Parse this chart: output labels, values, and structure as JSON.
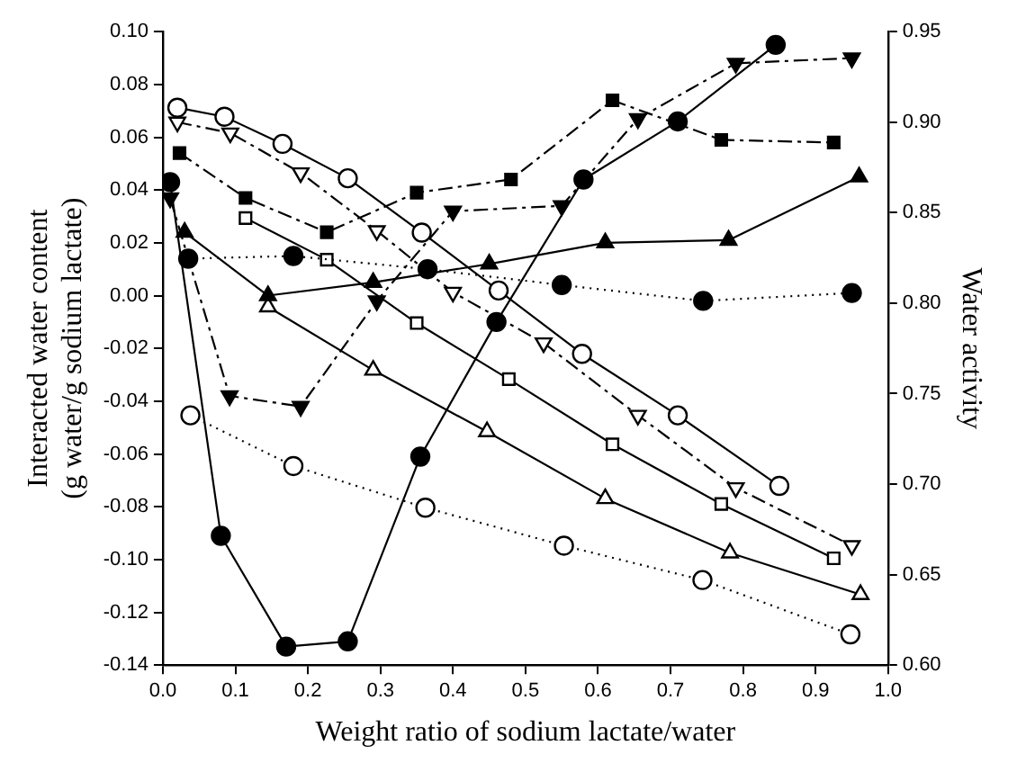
{
  "chart_data": {
    "type": "line",
    "xlabel": "Weight ratio of sodium lactate/water",
    "ylabel": "Interacted water content\n(g water/g sodium lactate)",
    "y2label": "Water activity",
    "xlim": [
      0,
      1.0
    ],
    "xticks": [
      {
        "value": 0,
        "label": "0.0"
      },
      0.1,
      0.2,
      0.3,
      0.4,
      0.5,
      0.6,
      0.7,
      0.8,
      0.9,
      {
        "value": 1.0,
        "label": "1.0"
      }
    ],
    "ylim": [
      -0.14,
      0.1
    ],
    "yticks": [
      {
        "value": -0.14,
        "label": "-0.14"
      },
      {
        "value": -0.12,
        "label": "-0.12"
      },
      {
        "value": -0.1,
        "label": "-0.10"
      },
      {
        "value": -0.08,
        "label": "-0.08"
      },
      {
        "value": -0.06,
        "label": "-0.06"
      },
      {
        "value": -0.04,
        "label": "-0.04"
      },
      {
        "value": -0.02,
        "label": "-0.02"
      },
      {
        "value": 0,
        "label": "0.00"
      },
      {
        "value": 0.02,
        "label": "0.02"
      },
      {
        "value": 0.04,
        "label": "0.04"
      },
      {
        "value": 0.06,
        "label": "0.06"
      },
      {
        "value": 0.08,
        "label": "0.08"
      },
      {
        "value": 0.1,
        "label": "0.10"
      }
    ],
    "y2lim": [
      0.6,
      0.95
    ],
    "y2ticks": [
      {
        "value": 0.6,
        "label": "0.60"
      },
      0.65,
      {
        "value": 0.7,
        "label": "0.70"
      },
      0.75,
      {
        "value": 0.8,
        "label": "0.80"
      },
      0.85,
      {
        "value": 0.9,
        "label": "0.90"
      },
      0.95
    ],
    "grid": false,
    "legend": false,
    "series": [
      {
        "color": "#000000",
        "marker": "circle",
        "line_style": "solid",
        "x": [
          0.01,
          0.08,
          0.17,
          0.255,
          0.355,
          0.46,
          0.58,
          0.71,
          0.845
        ],
        "values": [
          0.043,
          -0.091,
          -0.133,
          -0.131,
          -0.061,
          -0.01,
          0.044,
          0.066,
          0.095
        ]
      },
      {
        "color": "#000000",
        "marker": "circle",
        "line_style": "dotted",
        "x": [
          0.035,
          0.18,
          0.365,
          0.55,
          0.745,
          0.95
        ],
        "values": [
          0.014,
          0.015,
          0.01,
          0.004,
          -0.002,
          0.001
        ]
      },
      {
        "color": "#000000",
        "marker": "triangle_down",
        "line_style": "dashed",
        "x": [
          0.01,
          0.092,
          0.19,
          0.295,
          0.4,
          0.55,
          0.655,
          0.79,
          0.95
        ],
        "values": [
          0.037,
          -0.038,
          -0.042,
          -0.002,
          0.032,
          0.034,
          0.067,
          0.088,
          0.09
        ]
      },
      {
        "color": "#000000",
        "marker": "square",
        "line_style": "dashed",
        "x": [
          0.023,
          0.114,
          0.226,
          0.35,
          0.48,
          0.62,
          0.77,
          0.925
        ],
        "values": [
          0.054,
          0.037,
          0.024,
          0.039,
          0.044,
          0.074,
          0.059,
          0.058
        ]
      },
      {
        "color": "#000000",
        "marker": "triangle",
        "line_style": "solid",
        "x": [
          0.03,
          0.145,
          0.29,
          0.45,
          0.61,
          0.78,
          0.96
        ],
        "values": [
          0.024,
          0.0,
          0.005,
          0.012,
          0.02,
          0.021,
          0.045
        ]
      },
      {
        "color": "#000000",
        "marker": "circle",
        "line_style": "solid",
        "axis": "y2",
        "x": [
          0.02,
          0.085,
          0.165,
          0.255,
          0.357,
          0.463,
          0.578,
          0.71,
          0.85
        ],
        "values": [
          0.908,
          0.903,
          0.888,
          0.869,
          0.839,
          0.807,
          0.772,
          0.738,
          0.699
        ]
      },
      {
        "color": "#000000",
        "marker": "triangle_down",
        "line_style": "dashed",
        "axis": "y2",
        "x": [
          0.02,
          0.093,
          0.19,
          0.295,
          0.4,
          0.525,
          0.655,
          0.79,
          0.95
        ],
        "values": [
          0.9,
          0.894,
          0.872,
          0.84,
          0.806,
          0.778,
          0.738,
          0.698,
          0.666
        ]
      },
      {
        "color": "#000000",
        "marker": "square",
        "line_style": "solid",
        "axis": "y2",
        "x": [
          0.114,
          0.226,
          0.35,
          0.477,
          0.62,
          0.77,
          0.925
        ],
        "values": [
          0.847,
          0.824,
          0.789,
          0.758,
          0.722,
          0.689,
          0.659
        ]
      },
      {
        "color": "#000000",
        "marker": "triangle",
        "line_style": "solid",
        "axis": "y2",
        "x": [
          0.145,
          0.29,
          0.447,
          0.61,
          0.782,
          0.962
        ],
        "values": [
          0.798,
          0.763,
          0.729,
          0.692,
          0.662,
          0.639
        ]
      },
      {
        "color": "#000000",
        "marker": "circle",
        "line_style": "dotted",
        "axis": "y2",
        "x": [
          0.038,
          0.18,
          0.362,
          0.553,
          0.744,
          0.948
        ],
        "values": [
          0.738,
          0.71,
          0.687,
          0.666,
          0.647,
          0.617
        ]
      }
    ]
  }
}
